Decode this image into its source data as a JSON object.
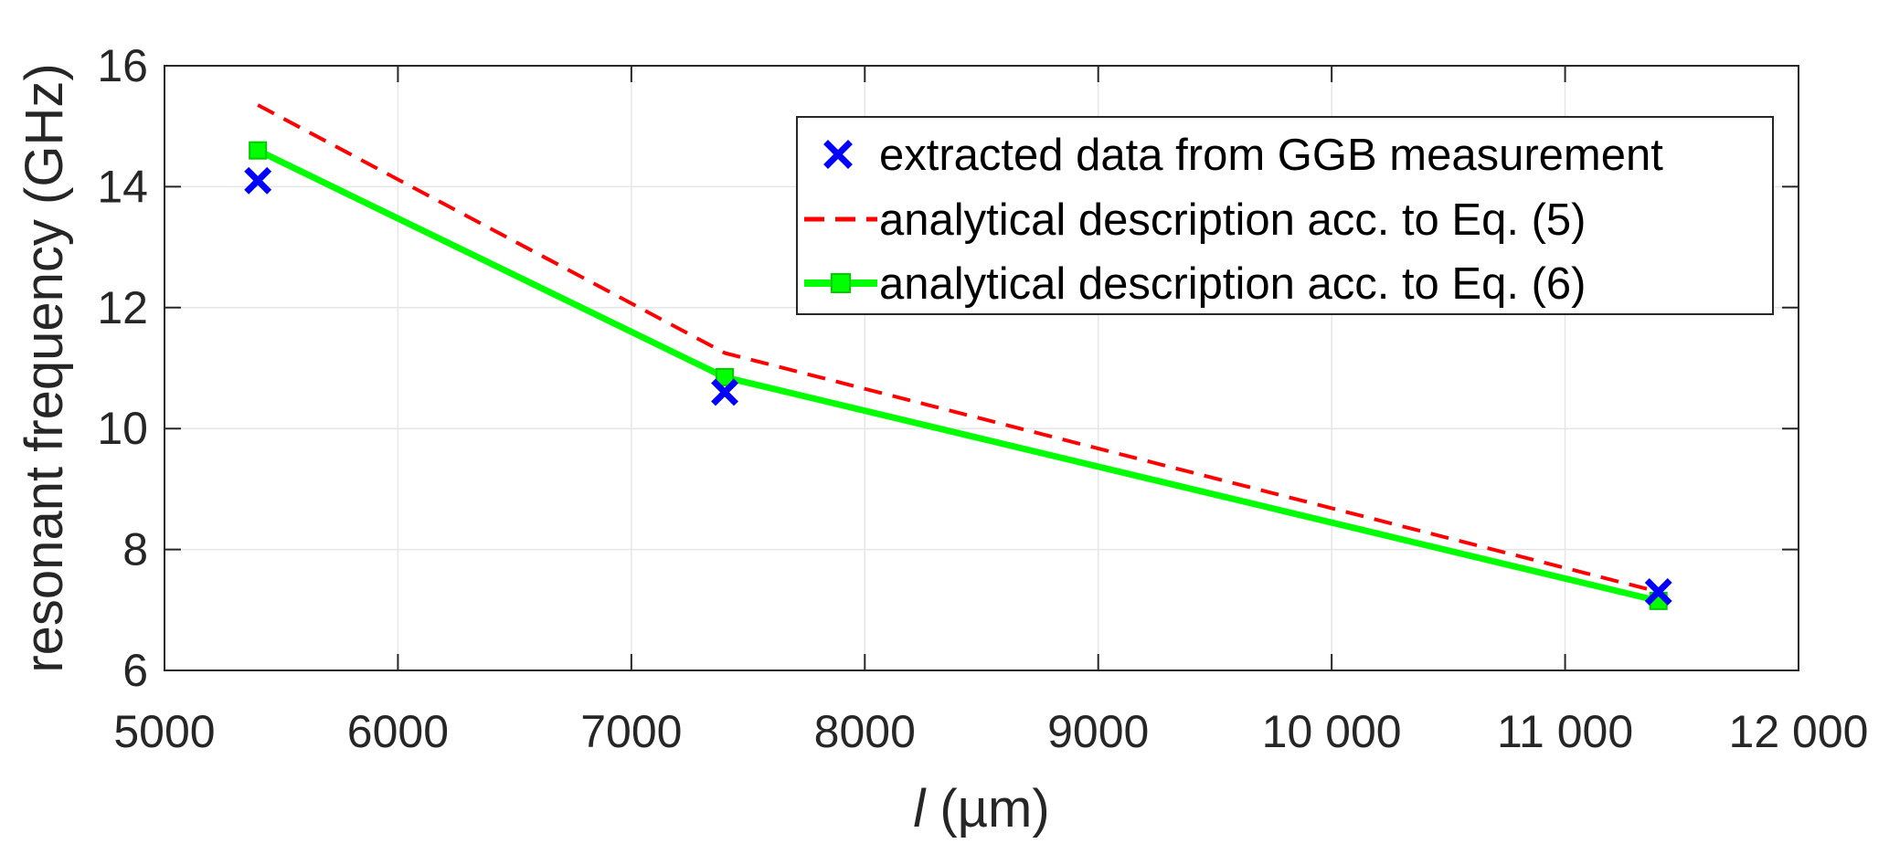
{
  "chart_data": {
    "type": "line",
    "xlabel_var": "l",
    "xlabel_unit": " (µm)",
    "ylabel": "resonant frequency (GHz)",
    "xlim": [
      5000,
      12000
    ],
    "ylim": [
      6,
      16
    ],
    "xticks": [
      5000,
      6000,
      7000,
      8000,
      9000,
      10000,
      11000,
      12000
    ],
    "xtick_labels": [
      "5000",
      "6000",
      "7000",
      "8000",
      "9000",
      "10 000",
      "11 000",
      "12 000"
    ],
    "yticks": [
      6,
      8,
      10,
      12,
      14,
      16
    ],
    "ytick_labels": [
      "6",
      "8",
      "10",
      "12",
      "14",
      "16"
    ],
    "grid": true,
    "legend_position": "top-right",
    "series": [
      {
        "name": "extracted data from GGB measurement",
        "style": "markers-x",
        "color": "#0000ff",
        "x": [
          5400,
          7400,
          11400
        ],
        "y": [
          14.1,
          10.6,
          7.3
        ]
      },
      {
        "name": "analytical description acc. to Eq. (5)",
        "style": "dashed",
        "color": "#ff0000",
        "x": [
          5400,
          7400,
          11400
        ],
        "y": [
          15.35,
          11.25,
          7.3
        ]
      },
      {
        "name": "analytical description acc. to Eq. (6)",
        "style": "solid-square",
        "color": "#00ff00",
        "x": [
          5400,
          7400,
          11400
        ],
        "y": [
          14.6,
          10.85,
          7.15
        ]
      }
    ]
  }
}
